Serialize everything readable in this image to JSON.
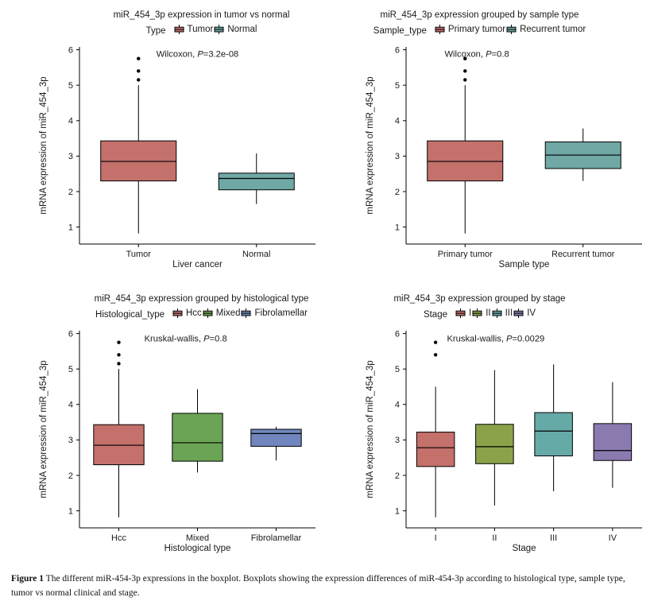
{
  "figure": {
    "caption_label": "Figure 1",
    "caption_text": "The different miR-454-3p expressions in the boxplot. Boxplots showing the expression differences of miR-454-3p according to histological type, sample type, tumor vs normal clinical and stage."
  },
  "chart_data": [
    {
      "type": "boxplot",
      "title": "miR_454_3p expression in tumor vs normal",
      "legend_title": "Type",
      "annotation": {
        "prefix": "Wilcoxon, ",
        "p": "P",
        "suffix": "=3.2e-08",
        "x_frac": 0.5,
        "y": 5.8
      },
      "xlabel": "Liver cancer",
      "ylabel": "mRNA expression of miR_454_3p",
      "ylim": [
        0.52,
        6.08
      ],
      "yticks": [
        1,
        2,
        3,
        4,
        5,
        6
      ],
      "grid": false,
      "legend_position": "top",
      "groups": [
        {
          "label": "Tumor",
          "color": "#c4706b",
          "whisker_low": 0.82,
          "q1": 2.3,
          "median": 2.85,
          "q3": 3.43,
          "whisker_high": 5.0,
          "outliers": [
            5.15,
            5.4,
            5.75
          ]
        },
        {
          "label": "Normal",
          "color": "#6fa8a5",
          "whisker_low": 1.65,
          "q1": 2.05,
          "median": 2.37,
          "q3": 2.52,
          "whisker_high": 3.08,
          "outliers": []
        }
      ]
    },
    {
      "type": "boxplot",
      "title": "miR_454_3p expression grouped by sample type",
      "legend_title": "Sample_type",
      "annotation": {
        "prefix": "Wilcoxon, ",
        "p": "P",
        "suffix": "=0.8",
        "x_frac": 0.3,
        "y": 5.8
      },
      "xlabel": "Sample type",
      "ylabel": "mRNA expression of miR_454_3p",
      "ylim": [
        0.52,
        6.08
      ],
      "yticks": [
        1,
        2,
        3,
        4,
        5,
        6
      ],
      "grid": false,
      "legend_position": "top",
      "groups": [
        {
          "label": "Primary tumor",
          "color": "#c4706b",
          "whisker_low": 0.82,
          "q1": 2.3,
          "median": 2.85,
          "q3": 3.43,
          "whisker_high": 5.0,
          "outliers": [
            5.15,
            5.4,
            5.75
          ]
        },
        {
          "label": "Recurrent tumor",
          "color": "#6fa8a5",
          "whisker_low": 2.3,
          "q1": 2.65,
          "median": 3.03,
          "q3": 3.4,
          "whisker_high": 3.78,
          "outliers": []
        }
      ]
    },
    {
      "type": "boxplot",
      "title": "miR_454_3p expression grouped by histological type",
      "legend_title": "Histological_type",
      "annotation": {
        "prefix": "Kruskal-wallis, ",
        "p": "P",
        "suffix": "=0.8",
        "x_frac": 0.45,
        "y": 5.78
      },
      "xlabel": "Histological type",
      "ylabel": "mRNA expression of miR_454_3p",
      "ylim": [
        0.52,
        6.08
      ],
      "yticks": [
        1,
        2,
        3,
        4,
        5,
        6
      ],
      "grid": false,
      "legend_position": "top",
      "groups": [
        {
          "label": "Hcc",
          "color": "#c4706b",
          "whisker_low": 0.82,
          "q1": 2.3,
          "median": 2.85,
          "q3": 3.43,
          "whisker_high": 5.0,
          "outliers": [
            5.15,
            5.4,
            5.75
          ]
        },
        {
          "label": "Mixed",
          "color": "#6ba454",
          "whisker_low": 2.08,
          "q1": 2.4,
          "median": 2.92,
          "q3": 3.75,
          "whisker_high": 4.43,
          "outliers": []
        },
        {
          "label": "Fibrolamellar",
          "color": "#7186be",
          "whisker_low": 2.42,
          "q1": 2.82,
          "median": 3.18,
          "q3": 3.3,
          "whisker_high": 3.37,
          "outliers": []
        }
      ]
    },
    {
      "type": "boxplot",
      "title": "miR_454_3p expression grouped by stage",
      "legend_title": "Stage",
      "annotation": {
        "prefix": "Kruskal-wallis, ",
        "p": "P",
        "suffix": "=0.0029",
        "x_frac": 0.38,
        "y": 5.78
      },
      "xlabel": "Stage",
      "ylabel": "mRNA expression of miR_454_3p",
      "ylim": [
        0.52,
        6.08
      ],
      "yticks": [
        1,
        2,
        3,
        4,
        5,
        6
      ],
      "grid": false,
      "legend_position": "top",
      "groups": [
        {
          "label": "I",
          "color": "#c4706b",
          "whisker_low": 0.82,
          "q1": 2.25,
          "median": 2.78,
          "q3": 3.22,
          "whisker_high": 4.5,
          "outliers": [
            5.4,
            5.75
          ]
        },
        {
          "label": "II",
          "color": "#8ba24a",
          "whisker_low": 1.15,
          "q1": 2.33,
          "median": 2.81,
          "q3": 3.44,
          "whisker_high": 4.97,
          "outliers": []
        },
        {
          "label": "III",
          "color": "#66aaa8",
          "whisker_low": 1.55,
          "q1": 2.55,
          "median": 3.25,
          "q3": 3.77,
          "whisker_high": 5.13,
          "outliers": []
        },
        {
          "label": "IV",
          "color": "#8a7ab0",
          "whisker_low": 1.65,
          "q1": 2.42,
          "median": 2.7,
          "q3": 3.46,
          "whisker_high": 4.63,
          "outliers": []
        }
      ]
    }
  ]
}
